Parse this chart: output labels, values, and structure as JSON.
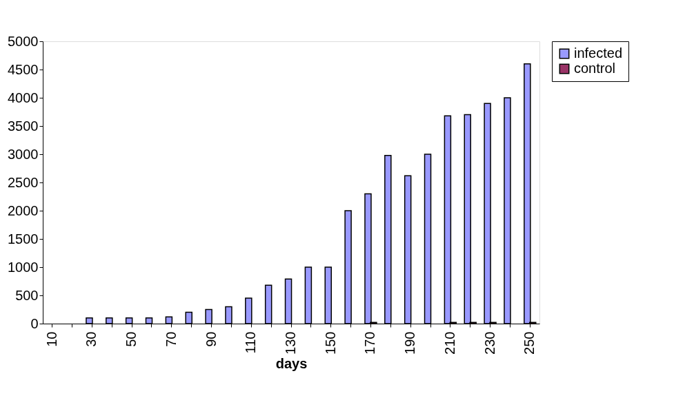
{
  "chart_data": {
    "type": "bar",
    "xlabel": "days",
    "categories": [
      "10",
      null,
      "30",
      null,
      "50",
      null,
      "70",
      null,
      "90",
      null,
      "110",
      null,
      "130",
      null,
      "150",
      null,
      "170",
      null,
      "190",
      null,
      "210",
      null,
      "230",
      null,
      "250"
    ],
    "series": [
      {
        "name": "infected",
        "color": "#9999ff",
        "values": [
          0,
          0,
          100,
          100,
          100,
          100,
          120,
          200,
          250,
          300,
          450,
          680,
          790,
          1000,
          1000,
          2000,
          2300,
          2980,
          2620,
          3000,
          3680,
          3700,
          3900,
          4000,
          4600
        ]
      },
      {
        "name": "control",
        "color": "#993366",
        "values": [
          0,
          0,
          0,
          0,
          0,
          0,
          0,
          0,
          0,
          0,
          0,
          0,
          0,
          0,
          0,
          0,
          20,
          0,
          0,
          0,
          20,
          20,
          20,
          0,
          20
        ]
      }
    ],
    "ylim": [
      0,
      5000
    ],
    "yticks": [
      0,
      500,
      1000,
      1500,
      2000,
      2500,
      3000,
      3500,
      4000,
      4500,
      5000
    ],
    "grid": false,
    "legend": "right"
  }
}
